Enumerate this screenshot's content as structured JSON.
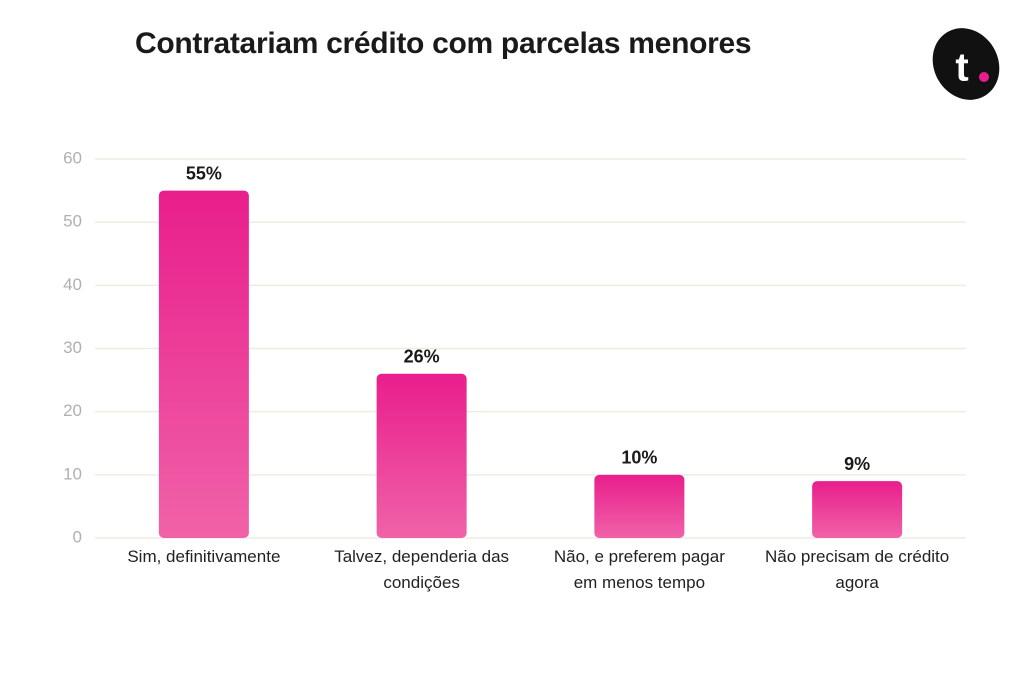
{
  "logo": "t",
  "chart_data": {
    "type": "bar",
    "title": "Contratariam crédito com parcelas menores",
    "categories": [
      "Sim, definitivamente",
      "Talvez, dependeria das condições",
      "Não, e preferem pagar em menos tempo",
      "Não precisam de crédito agora"
    ],
    "values": [
      55,
      26,
      10,
      9
    ],
    "value_labels": [
      "55%",
      "26%",
      "10%",
      "9%"
    ],
    "color": "#e91e8c",
    "ylim": [
      0,
      60
    ],
    "yticks": [
      0,
      10,
      20,
      30,
      40,
      50,
      60
    ],
    "grid": true
  }
}
